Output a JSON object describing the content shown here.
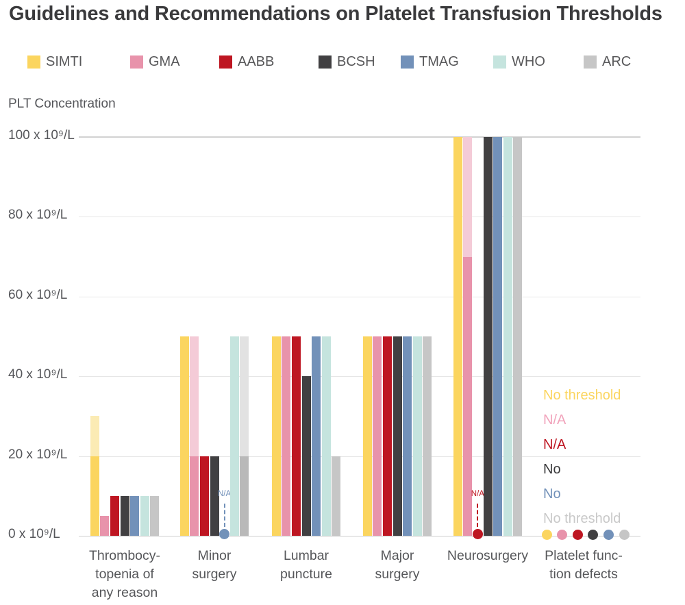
{
  "chart_data": {
    "type": "bar",
    "title": "Guidelines and Recommendations on Platelet Transfusion Thresholds",
    "y_axis": {
      "label": "PLT Concentration",
      "range": [
        0,
        100
      ],
      "ticks": [
        {
          "value": 0,
          "label": "0 x 10⁹/L"
        },
        {
          "value": 20,
          "label": "20 x 10⁹/L"
        },
        {
          "value": 40,
          "label": "40 x 10⁹/L"
        },
        {
          "value": 60,
          "label": "60 x 10⁹/L"
        },
        {
          "value": 80,
          "label": "80 x 10⁹/L"
        },
        {
          "value": 100,
          "label": "100 x 10⁹/L"
        }
      ],
      "grid": true
    },
    "legend_position": "top",
    "series": [
      {
        "name": "SIMTI",
        "colors": {
          "solid": "#FBD55F",
          "light": "#FBEBB4"
        }
      },
      {
        "name": "GMA",
        "colors": {
          "solid": "#E893AB",
          "light": "#F4CBD7"
        }
      },
      {
        "name": "AABB",
        "colors": {
          "solid": "#BE1622"
        }
      },
      {
        "name": "BCSH",
        "colors": {
          "solid": "#414042"
        }
      },
      {
        "name": "TMAG",
        "colors": {
          "solid": "#7291B9"
        }
      },
      {
        "name": "WHO",
        "colors": {
          "solid": "#C5E4DE"
        }
      },
      {
        "name": "ARC",
        "colors": {
          "solid": "#C6C6C6",
          "light": "#E2E2E2",
          "dark": "#B9B9B9"
        }
      }
    ],
    "groups": [
      {
        "label_lines": [
          "Thrombocy-",
          "topenia of",
          "any reason"
        ],
        "bars": [
          {
            "series": "SIMTI",
            "segments": [
              {
                "from": 0,
                "to": 20,
                "shade": "solid"
              },
              {
                "from": 20,
                "to": 30,
                "shade": "light"
              }
            ]
          },
          {
            "series": "GMA",
            "segments": [
              {
                "from": 0,
                "to": 5,
                "shade": "solid"
              }
            ]
          },
          {
            "series": "AABB",
            "segments": [
              {
                "from": 0,
                "to": 10,
                "shade": "solid"
              }
            ]
          },
          {
            "series": "BCSH",
            "segments": [
              {
                "from": 0,
                "to": 10,
                "shade": "solid"
              }
            ]
          },
          {
            "series": "TMAG",
            "segments": [
              {
                "from": 0,
                "to": 10,
                "shade": "solid"
              }
            ]
          },
          {
            "series": "WHO",
            "segments": [
              {
                "from": 0,
                "to": 10,
                "shade": "solid"
              }
            ]
          },
          {
            "series": "ARC",
            "segments": [
              {
                "from": 0,
                "to": 10,
                "shade": "solid"
              }
            ]
          }
        ]
      },
      {
        "label_lines": [
          "Minor",
          "surgery"
        ],
        "bars": [
          {
            "series": "SIMTI",
            "segments": [
              {
                "from": 0,
                "to": 50,
                "shade": "solid"
              }
            ]
          },
          {
            "series": "GMA",
            "segments": [
              {
                "from": 0,
                "to": 20,
                "shade": "solid"
              },
              {
                "from": 20,
                "to": 50,
                "shade": "light"
              }
            ]
          },
          {
            "series": "AABB",
            "segments": [
              {
                "from": 0,
                "to": 20,
                "shade": "solid"
              }
            ]
          },
          {
            "series": "BCSH",
            "segments": [
              {
                "from": 0,
                "to": 20,
                "shade": "solid"
              }
            ]
          },
          {
            "series": "TMAG",
            "na": true,
            "na_label": "N/A"
          },
          {
            "series": "WHO",
            "segments": [
              {
                "from": 0,
                "to": 50,
                "shade": "solid"
              }
            ]
          },
          {
            "series": "ARC",
            "segments": [
              {
                "from": 0,
                "to": 20,
                "shade": "dark"
              },
              {
                "from": 20,
                "to": 50,
                "shade": "light"
              }
            ]
          }
        ]
      },
      {
        "label_lines": [
          "Lumbar",
          "puncture"
        ],
        "bars": [
          {
            "series": "SIMTI",
            "segments": [
              {
                "from": 0,
                "to": 50,
                "shade": "solid"
              }
            ]
          },
          {
            "series": "GMA",
            "segments": [
              {
                "from": 0,
                "to": 50,
                "shade": "solid"
              }
            ]
          },
          {
            "series": "AABB",
            "segments": [
              {
                "from": 0,
                "to": 50,
                "shade": "solid"
              }
            ]
          },
          {
            "series": "BCSH",
            "segments": [
              {
                "from": 0,
                "to": 40,
                "shade": "solid"
              }
            ]
          },
          {
            "series": "TMAG",
            "segments": [
              {
                "from": 0,
                "to": 50,
                "shade": "solid"
              }
            ]
          },
          {
            "series": "WHO",
            "segments": [
              {
                "from": 0,
                "to": 50,
                "shade": "solid"
              }
            ]
          },
          {
            "series": "ARC",
            "segments": [
              {
                "from": 0,
                "to": 20,
                "shade": "solid"
              }
            ]
          }
        ]
      },
      {
        "label_lines": [
          "Major",
          "surgery"
        ],
        "bars": [
          {
            "series": "SIMTI",
            "segments": [
              {
                "from": 0,
                "to": 50,
                "shade": "solid"
              }
            ]
          },
          {
            "series": "GMA",
            "segments": [
              {
                "from": 0,
                "to": 50,
                "shade": "solid"
              }
            ]
          },
          {
            "series": "AABB",
            "segments": [
              {
                "from": 0,
                "to": 50,
                "shade": "solid"
              }
            ]
          },
          {
            "series": "BCSH",
            "segments": [
              {
                "from": 0,
                "to": 50,
                "shade": "solid"
              }
            ]
          },
          {
            "series": "TMAG",
            "segments": [
              {
                "from": 0,
                "to": 50,
                "shade": "solid"
              }
            ]
          },
          {
            "series": "WHO",
            "segments": [
              {
                "from": 0,
                "to": 50,
                "shade": "solid"
              }
            ]
          },
          {
            "series": "ARC",
            "segments": [
              {
                "from": 0,
                "to": 50,
                "shade": "solid"
              }
            ]
          }
        ]
      },
      {
        "label_lines": [
          "Neurosurgery"
        ],
        "bars": [
          {
            "series": "SIMTI",
            "segments": [
              {
                "from": 0,
                "to": 100,
                "shade": "solid"
              }
            ]
          },
          {
            "series": "GMA",
            "segments": [
              {
                "from": 0,
                "to": 70,
                "shade": "solid"
              },
              {
                "from": 70,
                "to": 100,
                "shade": "light"
              }
            ]
          },
          {
            "series": "AABB",
            "na": true,
            "na_label": "N/A"
          },
          {
            "series": "BCSH",
            "segments": [
              {
                "from": 0,
                "to": 100,
                "shade": "solid"
              }
            ]
          },
          {
            "series": "TMAG",
            "segments": [
              {
                "from": 0,
                "to": 100,
                "shade": "solid"
              }
            ]
          },
          {
            "series": "WHO",
            "segments": [
              {
                "from": 0,
                "to": 100,
                "shade": "solid"
              }
            ]
          },
          {
            "series": "ARC",
            "segments": [
              {
                "from": 0,
                "to": 100,
                "shade": "solid"
              }
            ]
          }
        ]
      },
      {
        "label_lines": [
          "Platelet func-",
          "tion defects"
        ],
        "bars": [],
        "annotations": [
          {
            "series": "SIMTI",
            "text": "No threshold",
            "color": "#FBD55F"
          },
          {
            "series": "GMA",
            "text": "N/A",
            "color": "#F1A3BB"
          },
          {
            "series": "AABB",
            "text": "N/A",
            "color": "#BE1622"
          },
          {
            "series": "BCSH",
            "text": "No",
            "color": "#3A3A3C"
          },
          {
            "series": "TMAG",
            "text": "No",
            "color": "#7291B9"
          },
          {
            "series": "ARC",
            "text": "No threshold",
            "color": "#C9C9C9"
          }
        ],
        "dots": [
          {
            "series": "SIMTI",
            "color": "#FBD55F"
          },
          {
            "series": "GMA",
            "color": "#E893AB"
          },
          {
            "series": "AABB",
            "color": "#BE1622"
          },
          {
            "series": "BCSH",
            "color": "#414042"
          },
          {
            "series": "TMAG",
            "color": "#7291B9"
          },
          {
            "series": "ARC",
            "color": "#C6C6C6"
          }
        ]
      }
    ]
  }
}
